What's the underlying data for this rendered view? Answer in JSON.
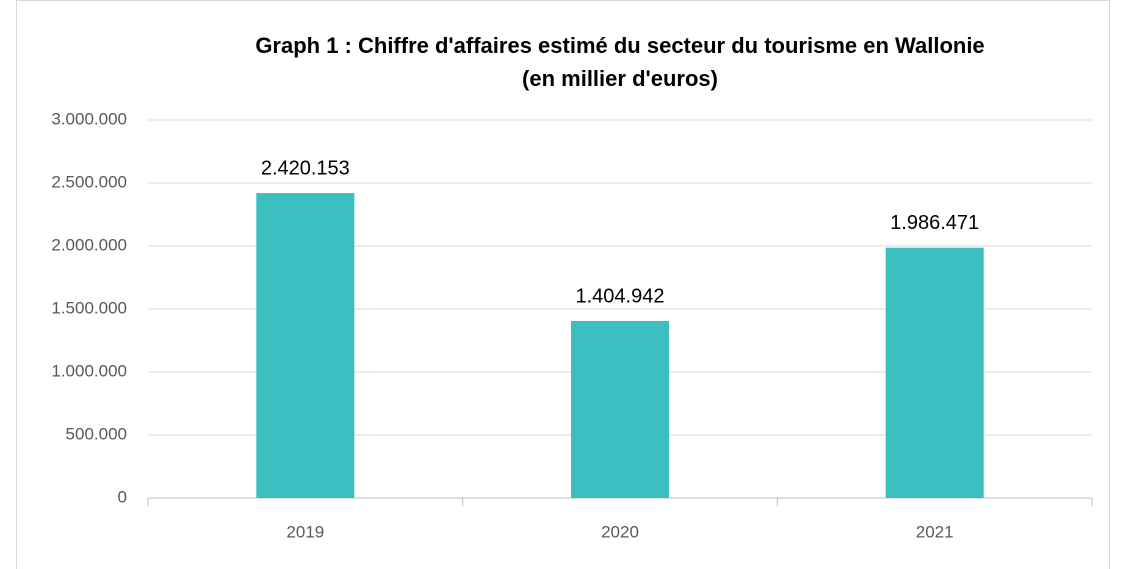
{
  "chart_data": {
    "type": "bar",
    "title": "Graph 1 : Chiffre d'affaires estimé du secteur du tourisme en Wallonie",
    "subtitle": "(en millier d'euros)",
    "categories": [
      "2019",
      "2020",
      "2021"
    ],
    "values": [
      2420153,
      1404942,
      1986471
    ],
    "value_labels": [
      "2.420.153",
      "1.404.942",
      "1.986.471"
    ],
    "color": "#3bbfc1",
    "ylim": [
      0,
      3000000
    ],
    "yticks": [
      0,
      {
        "value": 500000,
        "label": "500.000"
      },
      {
        "value": 1000000,
        "label": "1.000.000"
      },
      {
        "value": 1500000,
        "label": "1.500.000"
      },
      {
        "value": 2000000,
        "label": "2.000.000"
      },
      {
        "value": 2500000,
        "label": "2.500.000"
      },
      {
        "value": 3000000,
        "label": "3.000.000"
      }
    ],
    "grid": true
  }
}
